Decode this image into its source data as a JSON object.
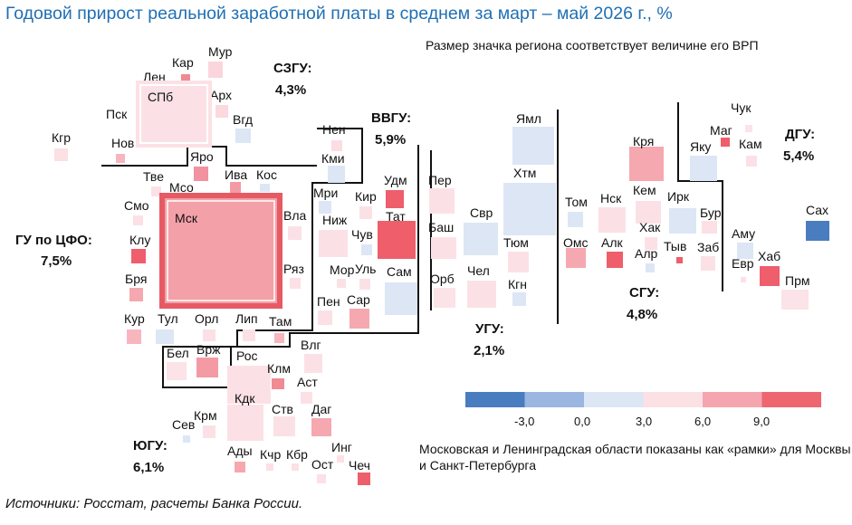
{
  "title": "Годовой прирост реальной заработной платы в среднем за март – май 2026 г., %",
  "subtitle": "Размер значка региона соответствует величине его ВРП",
  "note": "Московская и Ленинградская области показаны как «рамки» для Москвы и Санкт-Петербурга",
  "source": "Источники: Росстат, расчеты Банка России.",
  "legend": {
    "ticks": [
      "-3,0",
      "0,0",
      "3,0",
      "6,0",
      "9,0"
    ],
    "colors": [
      "#4a7cc0",
      "#9bb6e0",
      "#dde6f5",
      "#fbe0e4",
      "#f5a5ae",
      "#ee6670"
    ]
  },
  "districts": [
    {
      "name": "СЗГУ:",
      "value": "4,3%"
    },
    {
      "name": "ВВГУ:",
      "value": "5,9%"
    },
    {
      "name": "ДГУ:",
      "value": "5,4%"
    },
    {
      "name": "ГУ по ЦФО:",
      "value": "7,5%"
    },
    {
      "name": "УГУ:",
      "value": "2,1%"
    },
    {
      "name": "СГУ:",
      "value": "4,8%"
    },
    {
      "name": "ЮГУ:",
      "value": "6,1%"
    }
  ],
  "regions": [
    {
      "label": "Мур",
      "color": "#fad6dc"
    },
    {
      "label": "Кар",
      "color": "#f08a93"
    },
    {
      "label": "Лен",
      "color": "#fbe1e5"
    },
    {
      "label": "СПб",
      "color": "#fbe1e5"
    },
    {
      "label": "Арх",
      "color": "#fbd9de"
    },
    {
      "label": "Пск",
      "color": "#fbe3e7"
    },
    {
      "label": "Вгд",
      "color": "#dde6f5"
    },
    {
      "label": "Кгр",
      "color": "#fbe0e4"
    },
    {
      "label": "Нов",
      "color": "#f7b6be"
    },
    {
      "label": "Нен",
      "color": "#fbdde2"
    },
    {
      "label": "Кми",
      "color": "#dde6f5"
    },
    {
      "label": "Яро",
      "color": "#f291a0"
    },
    {
      "label": "Тве",
      "color": "#fbe1e5"
    },
    {
      "label": "Мсо",
      "color": "#fbe3e7"
    },
    {
      "label": "Ива",
      "color": "#f49aa4"
    },
    {
      "label": "Кос",
      "color": "#dde6f5"
    },
    {
      "label": "Смо",
      "color": "#fbe1e5"
    },
    {
      "label": "Мск",
      "color": "#f3a0a8"
    },
    {
      "label": "Вла",
      "color": "#fbe1e5"
    },
    {
      "label": "Клу",
      "color": "#ee5e6b"
    },
    {
      "label": "Ряз",
      "color": "#fbe1e5"
    },
    {
      "label": "Бря",
      "color": "#f5a8b0"
    },
    {
      "label": "Кур",
      "color": "#f7b6be"
    },
    {
      "label": "Тул",
      "color": "#dde6f5"
    },
    {
      "label": "Орл",
      "color": "#fbe1e5"
    },
    {
      "label": "Лип",
      "color": "#fbe1e5"
    },
    {
      "label": "Там",
      "color": "#f7b6be"
    },
    {
      "label": "Бел",
      "color": "#fbe3e7"
    },
    {
      "label": "Врж",
      "color": "#f49aa4"
    },
    {
      "label": "Мри",
      "color": "#dde6f5"
    },
    {
      "label": "Кир",
      "color": "#fbe1e5"
    },
    {
      "label": "Удм",
      "color": "#ee5e6b"
    },
    {
      "label": "Тат",
      "color": "#ee5e6b"
    },
    {
      "label": "Ниж",
      "color": "#fbe1e5"
    },
    {
      "label": "Чув",
      "color": "#dde6f5"
    },
    {
      "label": "Мор",
      "color": "#fbe1e5"
    },
    {
      "label": "Уль",
      "color": "#fbe1e5"
    },
    {
      "label": "Пен",
      "color": "#fbe1e5"
    },
    {
      "label": "Сар",
      "color": "#f5a8b0"
    },
    {
      "label": "Сам",
      "color": "#dde6f5"
    },
    {
      "label": "Пер",
      "color": "#fbe1e5"
    },
    {
      "label": "Баш",
      "color": "#fbe1e5"
    },
    {
      "label": "Орб",
      "color": "#fbe3e7"
    },
    {
      "label": "Ямл",
      "color": "#dde6f5"
    },
    {
      "label": "Хтм",
      "color": "#dde6f5"
    },
    {
      "label": "Свр",
      "color": "#dde6f5"
    },
    {
      "label": "Тюм",
      "color": "#fbe1e5"
    },
    {
      "label": "Чел",
      "color": "#fbe1e5"
    },
    {
      "label": "Кгн",
      "color": "#dde6f5"
    },
    {
      "label": "Кря",
      "color": "#f5a8b0"
    },
    {
      "label": "Том",
      "color": "#dde6f5"
    },
    {
      "label": "Нск",
      "color": "#fbe1e5"
    },
    {
      "label": "Кем",
      "color": "#fbe1e5"
    },
    {
      "label": "Хак",
      "color": "#fbe1e5"
    },
    {
      "label": "Омс",
      "color": "#f5a8b0"
    },
    {
      "label": "Алк",
      "color": "#ee5e6b"
    },
    {
      "label": "Алр",
      "color": "#dde6f5"
    },
    {
      "label": "Тыв",
      "color": "#ee5e6b"
    },
    {
      "label": "Ирк",
      "color": "#dde6f5"
    },
    {
      "label": "Бур",
      "color": "#fbe1e5"
    },
    {
      "label": "Заб",
      "color": "#fbe1e5"
    },
    {
      "label": "Чук",
      "color": "#fbe3e7"
    },
    {
      "label": "Маг",
      "color": "#ee5e6b"
    },
    {
      "label": "Яку",
      "color": "#dde6f5"
    },
    {
      "label": "Кам",
      "color": "#fbe1e5"
    },
    {
      "label": "Сах",
      "color": "#4a7cc0"
    },
    {
      "label": "Аму",
      "color": "#dde6f5"
    },
    {
      "label": "Евр",
      "color": "#fbe1e5"
    },
    {
      "label": "Хаб",
      "color": "#ee5e6b"
    },
    {
      "label": "Прм",
      "color": "#fbe3e7"
    },
    {
      "label": "Рос",
      "color": "#fbe1e5"
    },
    {
      "label": "Влг",
      "color": "#fbe1e5"
    },
    {
      "label": "Клм",
      "color": "#f08a93"
    },
    {
      "label": "Аст",
      "color": "#fbe1e5"
    },
    {
      "label": "Кдк",
      "color": "#fbe1e5"
    },
    {
      "label": "Крм",
      "color": "#fbe1e5"
    },
    {
      "label": "Сев",
      "color": "#dde6f5"
    },
    {
      "label": "Ств",
      "color": "#fbe1e5"
    },
    {
      "label": "Даг",
      "color": "#f5a8b0"
    },
    {
      "label": "Ады",
      "color": "#f5a8b0"
    },
    {
      "label": "Кчр",
      "color": "#fbe1e5"
    },
    {
      "label": "Кбр",
      "color": "#fbe1e5"
    },
    {
      "label": "Инг",
      "color": "#fbe1e5"
    },
    {
      "label": "Ост",
      "color": "#fbe1e5"
    },
    {
      "label": "Чеч",
      "color": "#ee5e6b"
    }
  ]
}
